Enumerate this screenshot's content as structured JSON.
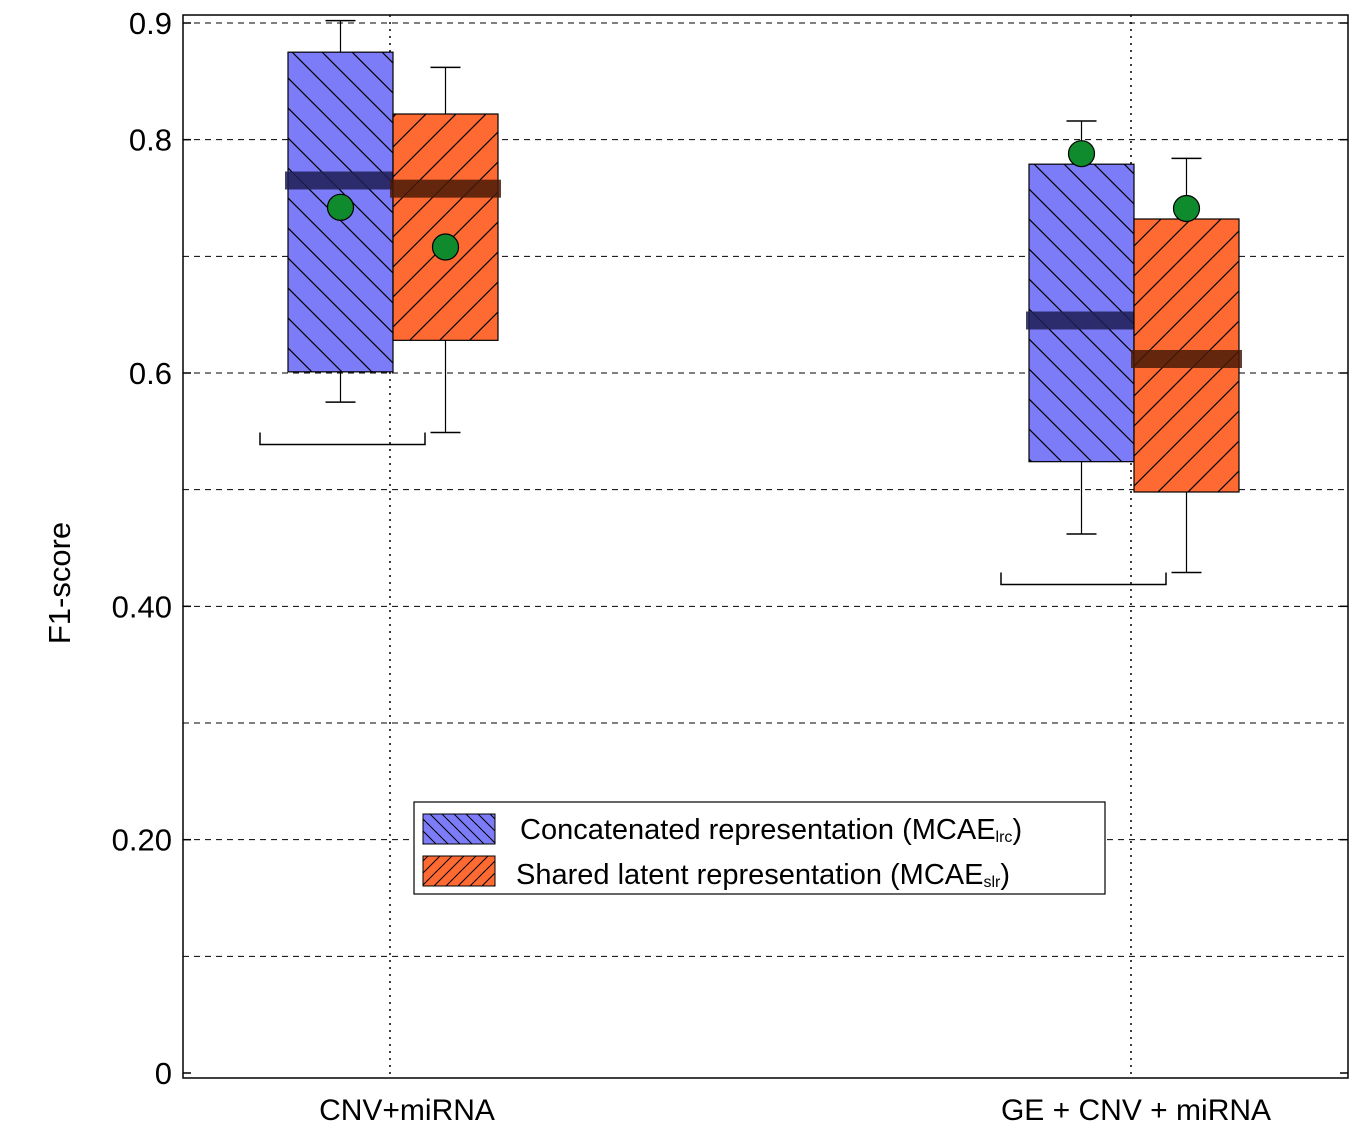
{
  "chart_data": {
    "type": "box",
    "ylabel": "F1-score",
    "ylim": [
      0,
      0.9
    ],
    "yticks": [
      {
        "value": 0,
        "label": "0"
      },
      {
        "value": 0.2,
        "label": "0.20"
      },
      {
        "value": 0.4,
        "label": "0.40"
      },
      {
        "value": 0.6,
        "label": "0.6"
      },
      {
        "value": 0.8,
        "label": "0.8"
      },
      {
        "value": 0.9,
        "label": "0.9"
      }
    ],
    "grid": true,
    "legend_position": "lower-center",
    "categories": [
      "CNV+miRNA",
      "GE + CNV + miRNA"
    ],
    "series": [
      {
        "name": "Concatenated representation (MCAE",
        "name_subscript": "lrc",
        "name_suffix": ")",
        "color": "#7c7cf8",
        "hatch": "back-diagonal",
        "boxes": [
          {
            "category": "CNV+miRNA",
            "whisker_low": 0.575,
            "q1": 0.601,
            "median": 0.765,
            "q3": 0.875,
            "whisker_high": 0.902,
            "mean": 0.742
          },
          {
            "category": "GE + CNV + miRNA",
            "whisker_low": 0.462,
            "q1": 0.524,
            "median": 0.645,
            "q3": 0.779,
            "whisker_high": 0.816,
            "mean": 0.788
          }
        ]
      },
      {
        "name": "Shared latent representation (MCAE",
        "name_subscript": "slr",
        "name_suffix": ")",
        "color": "#ff6a33",
        "hatch": "forward-diagonal",
        "boxes": [
          {
            "category": "CNV+miRNA",
            "whisker_low": 0.549,
            "q1": 0.628,
            "median": 0.758,
            "q3": 0.822,
            "whisker_high": 0.862,
            "mean": 0.708
          },
          {
            "category": "GE + CNV + miRNA",
            "whisker_low": 0.429,
            "q1": 0.498,
            "median": 0.612,
            "q3": 0.732,
            "whisker_high": 0.784,
            "mean": 0.741
          }
        ]
      }
    ]
  }
}
